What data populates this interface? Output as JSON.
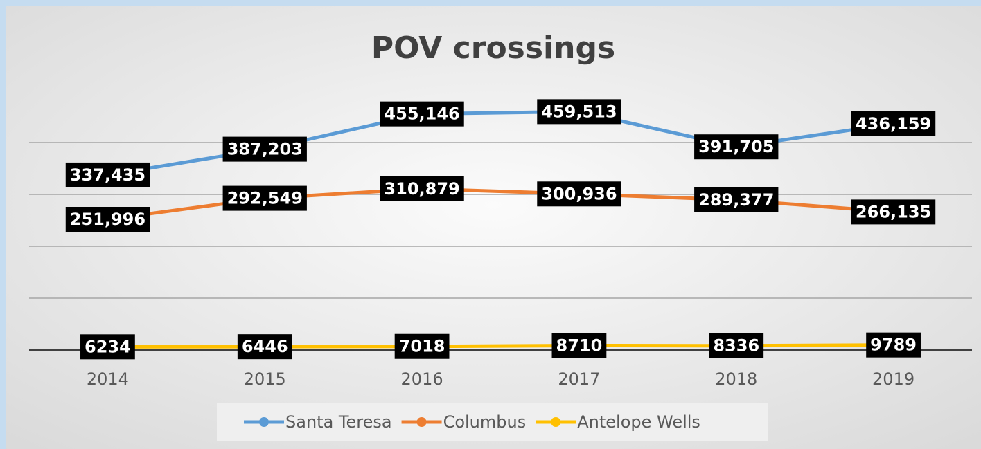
{
  "chart_data": {
    "type": "line",
    "title": "POV crossings",
    "categories": [
      "2014",
      "2015",
      "2016",
      "2017",
      "2018",
      "2019"
    ],
    "series": [
      {
        "name": "Santa Teresa",
        "color": "#5b9bd5",
        "values": [
          337435,
          387203,
          455146,
          459513,
          391705,
          436159
        ],
        "value_labels": [
          "337,435",
          "387,203",
          "455,146",
          "459,513",
          "391,705",
          "436,159"
        ]
      },
      {
        "name": "Columbus",
        "color": "#ed7d31",
        "values": [
          251996,
          292549,
          310879,
          300936,
          289377,
          266135
        ],
        "value_labels": [
          "251,996",
          "292,549",
          "310,879",
          "300,936",
          "289,377",
          "266,135"
        ]
      },
      {
        "name": "Antelope Wells",
        "color": "#ffc000",
        "values": [
          6234,
          6446,
          7018,
          8710,
          8336,
          9789
        ]
      }
    ],
    "ylim": [
      0,
      500000
    ],
    "yticks": [
      0,
      100000,
      200000,
      300000,
      400000
    ],
    "grid": true,
    "legend": "bottom"
  }
}
